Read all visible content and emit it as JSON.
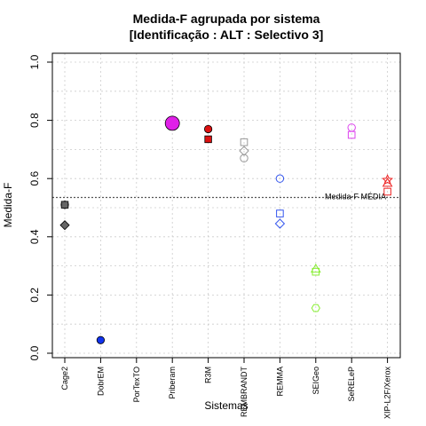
{
  "chart_data": {
    "type": "scatter",
    "title": "Medida-F agrupada por sistema",
    "subtitle": "[Identificação : ALT : Selectivo 3]",
    "xlabel": "Sistemas",
    "ylabel": "Medida-F",
    "ylim": [
      0,
      1
    ],
    "yticks": [
      "0.0",
      "0.2",
      "0.4",
      "0.6",
      "0.8",
      "1.0"
    ],
    "grid": true,
    "categories": [
      "Cage2",
      "DobrEM",
      "PorTexTO",
      "Priberam",
      "R3M",
      "REMBRANDT",
      "REMMA",
      "SEIGeo",
      "SeRELeP",
      "XIP-L2F/Xerox"
    ],
    "reference_line": {
      "label": "Medida-F MÉDIA",
      "value": 0.535
    },
    "points": [
      {
        "category": "Cage2",
        "y": 0.51,
        "shape": "circle",
        "color": "#666666",
        "filled": true
      },
      {
        "category": "Cage2",
        "y": 0.51,
        "shape": "square",
        "color": "#666666",
        "filled": true
      },
      {
        "category": "Cage2",
        "y": 0.44,
        "shape": "diamond",
        "color": "#666666",
        "filled": true
      },
      {
        "category": "DobrEM",
        "y": 0.045,
        "shape": "circle",
        "color": "#1133ee",
        "filled": true
      },
      {
        "category": "Priberam",
        "y": 0.79,
        "shape": "circle",
        "color": "#e020e8",
        "filled": true,
        "large": true
      },
      {
        "category": "R3M",
        "y": 0.77,
        "shape": "circle",
        "color": "#dd1111",
        "filled": true
      },
      {
        "category": "R3M",
        "y": 0.735,
        "shape": "square",
        "color": "#dd1111",
        "filled": true
      },
      {
        "category": "REMBRANDT",
        "y": 0.725,
        "shape": "square",
        "color": "#999999",
        "filled": false
      },
      {
        "category": "REMBRANDT",
        "y": 0.695,
        "shape": "diamond",
        "color": "#999999",
        "filled": false
      },
      {
        "category": "REMBRANDT",
        "y": 0.67,
        "shape": "circle",
        "color": "#999999",
        "filled": false
      },
      {
        "category": "REMMA",
        "y": 0.6,
        "shape": "circle",
        "color": "#3355ee",
        "filled": false
      },
      {
        "category": "REMMA",
        "y": 0.48,
        "shape": "square",
        "color": "#3355ee",
        "filled": false
      },
      {
        "category": "REMMA",
        "y": 0.445,
        "shape": "diamond",
        "color": "#3355ee",
        "filled": false
      },
      {
        "category": "SEIGeo",
        "y": 0.29,
        "shape": "triangle",
        "color": "#88ee33",
        "filled": false
      },
      {
        "category": "SEIGeo",
        "y": 0.28,
        "shape": "square",
        "color": "#88ee33",
        "filled": false
      },
      {
        "category": "SEIGeo",
        "y": 0.155,
        "shape": "hexagon",
        "color": "#88ee33",
        "filled": false
      },
      {
        "category": "SeRELeP",
        "y": 0.775,
        "shape": "circle",
        "color": "#dd44ee",
        "filled": false
      },
      {
        "category": "SeRELeP",
        "y": 0.75,
        "shape": "square",
        "color": "#dd44ee",
        "filled": false
      },
      {
        "category": "XIP-L2F/Xerox",
        "y": 0.595,
        "shape": "star",
        "color": "#ee2222",
        "filled": false
      },
      {
        "category": "XIP-L2F/Xerox",
        "y": 0.585,
        "shape": "triangle",
        "color": "#ee2222",
        "filled": false
      },
      {
        "category": "XIP-L2F/Xerox",
        "y": 0.555,
        "shape": "square",
        "color": "#ee2222",
        "filled": false
      }
    ]
  }
}
